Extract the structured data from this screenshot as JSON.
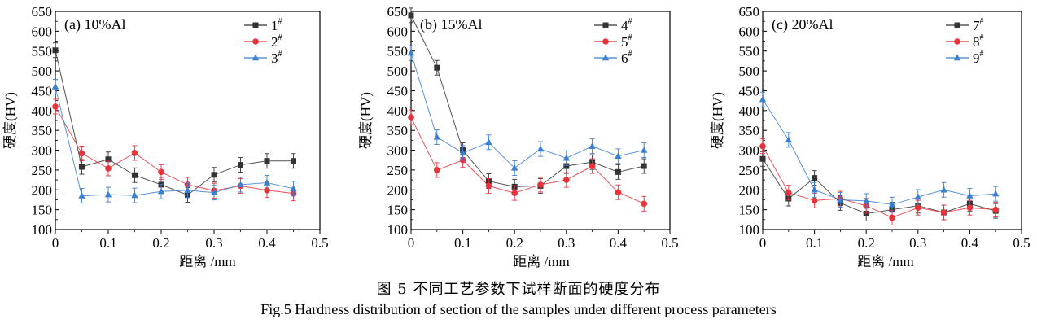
{
  "chart_data": [
    {
      "type": "line",
      "panel_label": "(a) 10%Al",
      "xlabel": "距离 /mm",
      "ylabel": "硬度(HV)",
      "xlim": [
        0,
        0.5
      ],
      "ylim": [
        100,
        650
      ],
      "xticks": [
        "0",
        "0.1",
        "0.2",
        "0.3",
        "0.4",
        "0.5"
      ],
      "yticks": [
        "100",
        "150",
        "200",
        "250",
        "300",
        "350",
        "400",
        "450",
        "500",
        "550",
        "600",
        "650"
      ],
      "legend_position": "top-right",
      "x": [
        0,
        0.05,
        0.1,
        0.15,
        0.2,
        0.25,
        0.3,
        0.35,
        0.4,
        0.45
      ],
      "series": [
        {
          "name": "1",
          "sup": "#",
          "color": "#333333",
          "marker": "square",
          "values": [
            552,
            258,
            277,
            237,
            213,
            187,
            238,
            263,
            273,
            273
          ]
        },
        {
          "name": "2",
          "sup": "#",
          "color": "#e8333c",
          "marker": "circle",
          "values": [
            410,
            292,
            254,
            293,
            245,
            213,
            198,
            210,
            199,
            191
          ]
        },
        {
          "name": "3",
          "sup": "#",
          "color": "#3a7fd0",
          "marker": "triangle",
          "values": [
            460,
            185,
            188,
            186,
            196,
            199,
            193,
            213,
            218,
            203
          ]
        }
      ]
    },
    {
      "type": "line",
      "panel_label": "(b) 15%Al",
      "xlabel": "距离 /mm",
      "ylabel": "硬度(HV)",
      "xlim": [
        0,
        0.5
      ],
      "ylim": [
        100,
        650
      ],
      "xticks": [
        "0",
        "0.1",
        "0.2",
        "0.3",
        "0.4",
        "0.5"
      ],
      "yticks": [
        "100",
        "150",
        "200",
        "250",
        "300",
        "350",
        "400",
        "450",
        "500",
        "550",
        "600",
        "650"
      ],
      "legend_position": "top-right",
      "x": [
        0,
        0.05,
        0.1,
        0.15,
        0.2,
        0.25,
        0.3,
        0.35,
        0.4,
        0.45
      ],
      "series": [
        {
          "name": "4",
          "sup": "#",
          "color": "#333333",
          "marker": "square",
          "values": [
            640,
            508,
            300,
            222,
            208,
            210,
            260,
            270,
            245,
            260
          ]
        },
        {
          "name": "5",
          "sup": "#",
          "color": "#e8333c",
          "marker": "circle",
          "values": [
            383,
            250,
            275,
            210,
            192,
            213,
            225,
            260,
            194,
            165
          ]
        },
        {
          "name": "6",
          "sup": "#",
          "color": "#3a7fd0",
          "marker": "triangle",
          "values": [
            545,
            333,
            293,
            320,
            255,
            303,
            280,
            310,
            285,
            300
          ]
        }
      ]
    },
    {
      "type": "line",
      "panel_label": "(c) 20%Al",
      "xlabel": "距离 /mm",
      "ylabel": "硬度(HV)",
      "xlim": [
        0,
        0.5
      ],
      "ylim": [
        100,
        650
      ],
      "xticks": [
        "0",
        "0.1",
        "0.2",
        "0.3",
        "0.4",
        "0.5"
      ],
      "yticks": [
        "100",
        "150",
        "200",
        "250",
        "300",
        "350",
        "400",
        "450",
        "500",
        "550",
        "600",
        "650"
      ],
      "legend_position": "top-right",
      "x": [
        0,
        0.05,
        0.1,
        0.15,
        0.2,
        0.25,
        0.3,
        0.35,
        0.4,
        0.45
      ],
      "series": [
        {
          "name": "7",
          "sup": "#",
          "color": "#333333",
          "marker": "square",
          "values": [
            278,
            178,
            230,
            167,
            140,
            150,
            160,
            143,
            165,
            147
          ]
        },
        {
          "name": "8",
          "sup": "#",
          "color": "#e8333c",
          "marker": "circle",
          "values": [
            310,
            193,
            173,
            178,
            160,
            130,
            155,
            143,
            155,
            150
          ]
        },
        {
          "name": "9",
          "sup": "#",
          "color": "#3a7fd0",
          "marker": "triangle",
          "values": [
            428,
            326,
            200,
            175,
            172,
            163,
            182,
            200,
            185,
            190
          ]
        }
      ]
    }
  ],
  "caption": {
    "zh": "图 5  不同工艺参数下试样断面的硬度分布",
    "en": "Fig.5  Hardness distribution of section of the samples under different process parameters"
  }
}
